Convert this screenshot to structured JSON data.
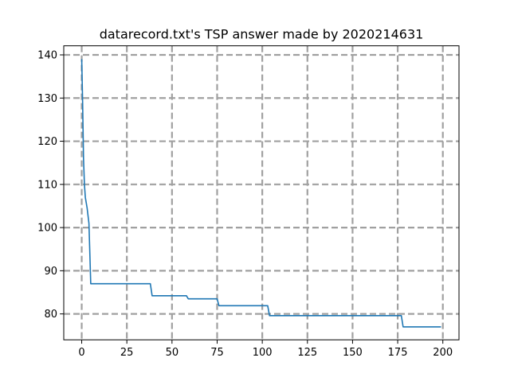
{
  "chart_data": {
    "type": "line",
    "title": "datarecord.txt's TSP answer made by 2020214631",
    "xlabel": "",
    "ylabel": "",
    "xlim": [
      -9.95,
      208.95
    ],
    "ylim": [
      74.0,
      142.1
    ],
    "x_ticks": [
      0,
      25,
      50,
      75,
      100,
      125,
      150,
      175,
      200
    ],
    "y_ticks": [
      80,
      90,
      100,
      110,
      120,
      130,
      140
    ],
    "grid": true,
    "legend": "none",
    "series": [
      {
        "color": "#1f77b4",
        "points": [
          [
            0,
            139.0
          ],
          [
            0.5,
            129.0
          ],
          [
            1,
            116.0
          ],
          [
            1.5,
            110.0
          ],
          [
            2,
            107.0
          ],
          [
            3,
            104.5
          ],
          [
            4,
            101.0
          ],
          [
            5,
            87.0
          ],
          [
            38,
            87.0
          ],
          [
            39,
            84.2
          ],
          [
            58,
            84.2
          ],
          [
            59,
            83.5
          ],
          [
            75,
            83.5
          ],
          [
            76,
            81.9
          ],
          [
            103,
            81.9
          ],
          [
            104,
            79.6
          ],
          [
            177,
            79.6
          ],
          [
            178,
            77.0
          ],
          [
            199,
            77.0
          ]
        ]
      }
    ],
    "colors": {
      "line": "#1f77b4",
      "grid": "#a0a0a0",
      "axes": "#000000"
    }
  }
}
